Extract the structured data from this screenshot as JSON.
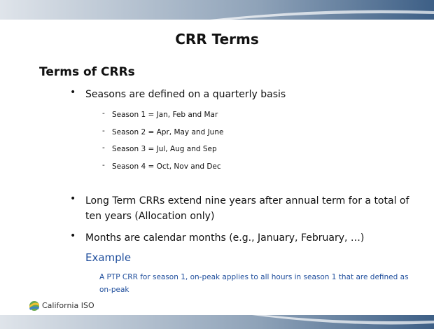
{
  "slide": {
    "title": "CRR Terms",
    "heading": "Terms of CRRs",
    "bullets": [
      {
        "text": "Seasons are defined on a quarterly basis",
        "items": [
          "Season 1 = Jan, Feb and Mar",
          "Season 2 = Apr, May and June",
          "Season 3 = Jul, Aug and Sep",
          "Season 4 = Oct, Nov and Dec"
        ]
      },
      {
        "text": "Long Term CRRs extend nine years after annual term for a total of ten years (Allocation only)",
        "items": []
      },
      {
        "text": "Months are calendar months (e.g., January, February, …)",
        "items": []
      }
    ],
    "example": {
      "heading": "Example",
      "text": "A PTP CRR for season 1, on-peak applies to all hours in season 1 that are defined as on-peak"
    },
    "footer": {
      "logo": "California ISO"
    }
  }
}
